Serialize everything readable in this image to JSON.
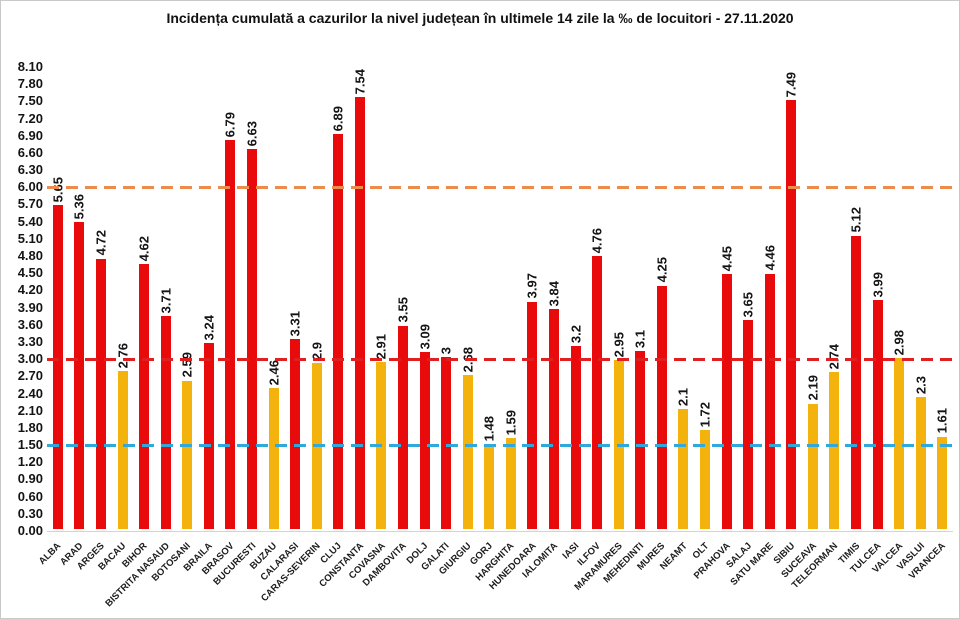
{
  "chart_data": {
    "type": "bar",
    "title": "Incidența cumulată a cazurilor la nivel județean în ultimele 14 zile la ‰ de locuitori - 27.11.2020",
    "xlabel": "",
    "ylabel": "",
    "categories": [
      "ALBA",
      "ARAD",
      "ARGES",
      "BACAU",
      "BIHOR",
      "BISTRITA NASAUD",
      "BOTOSANI",
      "BRAILA",
      "BRASOV",
      "BUCURESTI",
      "BUZAU",
      "CALARASI",
      "CARAS-SEVERIN",
      "CLUJ",
      "CONSTANTA",
      "COVASNA",
      "DAMBOVITA",
      "DOLJ",
      "GALATI",
      "GIURGIU",
      "GORJ",
      "HARGHITA",
      "HUNEDOARA",
      "IALOMITA",
      "IASI",
      "ILFOV",
      "MARAMURES",
      "MEHEDINTI",
      "MURES",
      "NEAMT",
      "OLT",
      "PRAHOVA",
      "SALAJ",
      "SATU MARE",
      "SIBIU",
      "SUCEAVA",
      "TELEORMAN",
      "TIMIS",
      "TULCEA",
      "VALCEA",
      "VASLUI",
      "VRANCEA"
    ],
    "values": [
      5.65,
      5.36,
      4.72,
      2.76,
      4.62,
      3.71,
      2.59,
      3.24,
      6.79,
      6.63,
      2.46,
      3.31,
      2.9,
      6.89,
      7.54,
      2.91,
      3.55,
      3.09,
      3,
      2.68,
      1.48,
      1.59,
      3.97,
      3.84,
      3.2,
      4.76,
      2.95,
      3.1,
      4.25,
      2.1,
      1.72,
      4.45,
      3.65,
      4.46,
      7.49,
      2.19,
      2.74,
      5.12,
      3.99,
      2.98,
      2.3,
      1.61
    ],
    "bands": [
      "red",
      "red",
      "red",
      "yellow",
      "red",
      "red",
      "yellow",
      "red",
      "red",
      "red",
      "yellow",
      "red",
      "yellow",
      "red",
      "red",
      "yellow",
      "red",
      "red",
      "red",
      "yellow",
      "yellow",
      "yellow",
      "red",
      "red",
      "red",
      "red",
      "yellow",
      "red",
      "red",
      "yellow",
      "yellow",
      "red",
      "red",
      "red",
      "red",
      "yellow",
      "yellow",
      "red",
      "red",
      "yellow",
      "yellow",
      "yellow"
    ],
    "colors": {
      "red": "#e90b0b",
      "yellow": "#f4b20c"
    },
    "ylim": [
      0,
      8.1
    ],
    "ytick_step": 0.3,
    "ytick_labels": [
      "8.10",
      "7.80",
      "7.50",
      "7.20",
      "6.90",
      "6.60",
      "6.30",
      "6.00",
      "5.70",
      "5.40",
      "5.10",
      "4.80",
      "4.50",
      "4.20",
      "3.90",
      "3.60",
      "3.30",
      "3.00",
      "2.70",
      "2.40",
      "2.10",
      "1.80",
      "1.50",
      "1.20",
      "0.90",
      "0.60",
      "0.30",
      "0.00"
    ],
    "grid": "off",
    "legend": "none",
    "reference_lines": [
      {
        "value": 6.0,
        "color": "#ed8c4a",
        "style": "dashed"
      },
      {
        "value": 3.0,
        "color": "#e02020",
        "style": "dashed"
      },
      {
        "value": 1.5,
        "color": "#2fa9dc",
        "style": "dashed"
      }
    ]
  }
}
